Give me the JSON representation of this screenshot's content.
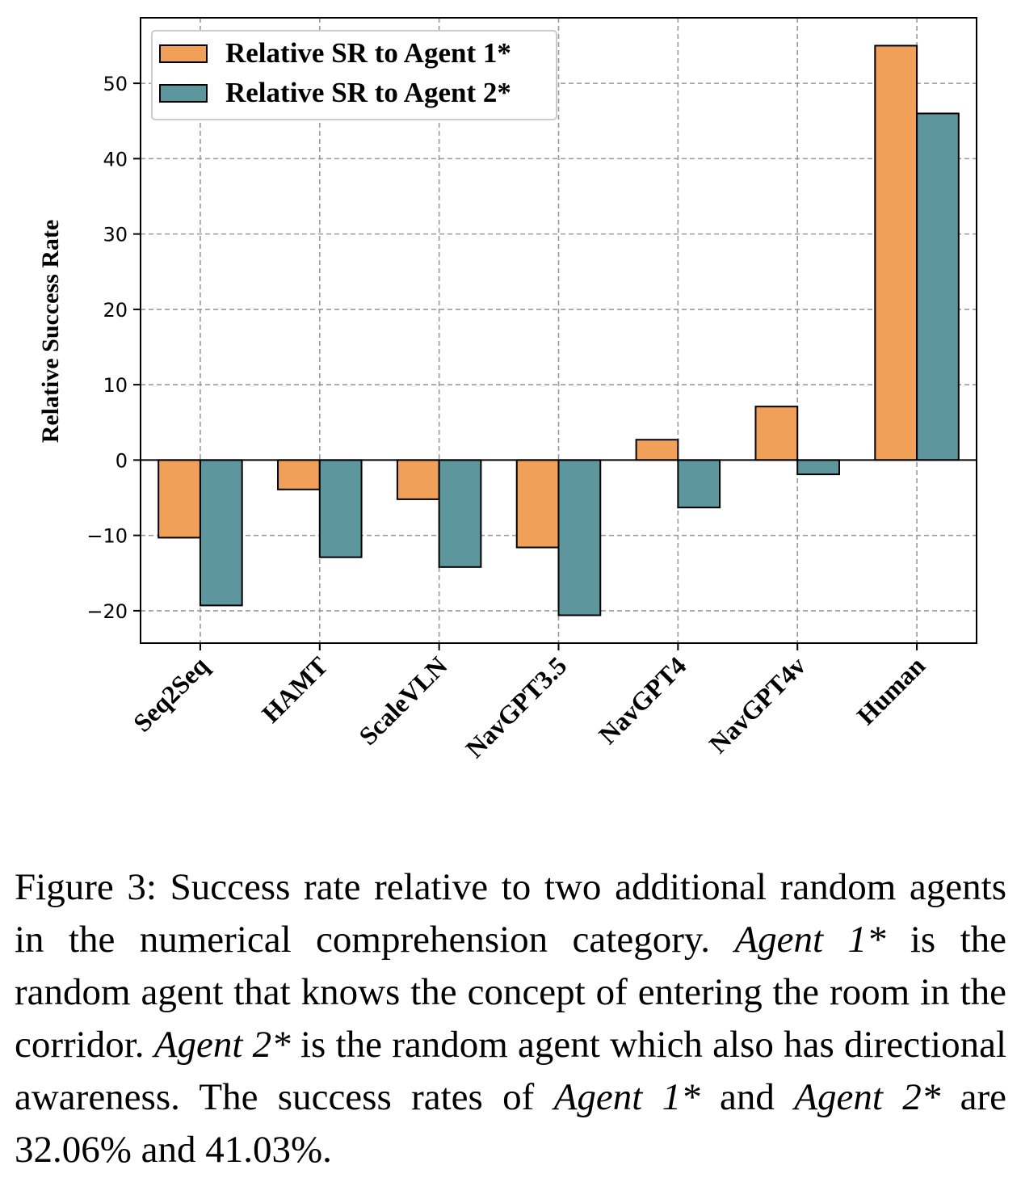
{
  "chart_data": {
    "type": "bar",
    "ylabel": "Relative Success Rate",
    "xlabel": "",
    "ylim": [
      -24.3,
      58.7
    ],
    "yticks": [
      -20,
      -10,
      0,
      10,
      20,
      30,
      40,
      50
    ],
    "ytick_labels": [
      "−20",
      "−10",
      "0",
      "10",
      "20",
      "30",
      "40",
      "50"
    ],
    "grid": true,
    "legend_position": "top-left",
    "categories": [
      "Seq2Seq",
      "HAMT",
      "ScaleVLN",
      "NavGPT3.5",
      "NavGPT4",
      "NavGPT4v",
      "Human"
    ],
    "series": [
      {
        "name": "Relative SR to Agent 1*",
        "color": "#f0a058",
        "values": [
          -10.3,
          -3.9,
          -5.2,
          -11.6,
          2.7,
          7.1,
          55.0
        ]
      },
      {
        "name": "Relative SR to Agent 2*",
        "color": "#5d969c",
        "values": [
          -19.3,
          -12.9,
          -14.2,
          -20.6,
          -6.3,
          -1.9,
          46.0
        ]
      }
    ]
  },
  "caption": {
    "segments": [
      {
        "text": "Figure 3: Success rate relative to two additional random agents in the numerical comprehension category. ",
        "italic": false
      },
      {
        "text": "Agent 1*",
        "italic": true
      },
      {
        "text": " is the random agent that knows the concept of entering the room in the corridor. ",
        "italic": false
      },
      {
        "text": "Agent 2*",
        "italic": true
      },
      {
        "text": " is the random agent which also has directional awareness. The success rates of ",
        "italic": false
      },
      {
        "text": "Agent 1*",
        "italic": true
      },
      {
        "text": " and ",
        "italic": false
      },
      {
        "text": "Agent 2*",
        "italic": true
      },
      {
        "text": " are 32.06% and 41.03%.",
        "italic": false
      }
    ]
  }
}
